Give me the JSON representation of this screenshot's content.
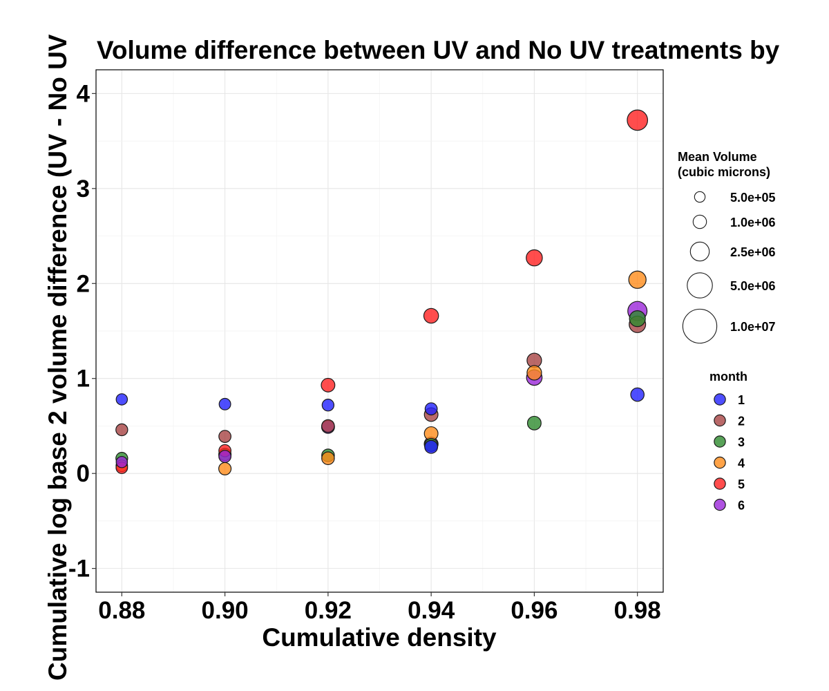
{
  "chart_data": {
    "type": "scatter",
    "title": "Volume difference between UV and No UV treatments by",
    "xlabel": "Cumulative density",
    "ylabel": "Cumulative log base 2 volume difference (UV - No UV",
    "xlim": [
      0.875,
      0.985
    ],
    "ylim": [
      -1.25,
      4.25
    ],
    "x_ticks": [
      "0.88",
      "0.90",
      "0.92",
      "0.94",
      "0.96",
      "0.98"
    ],
    "y_ticks": [
      "-1",
      "0",
      "1",
      "2",
      "3",
      "4"
    ],
    "grid": true,
    "size_legend": {
      "title_lines": [
        "Mean Volume",
        "(cubic microns)"
      ],
      "entries": [
        {
          "label": "5.0e+05",
          "value": 500000
        },
        {
          "label": "1.0e+06",
          "value": 1000000
        },
        {
          "label": "2.5e+06",
          "value": 2500000
        },
        {
          "label": "5.0e+06",
          "value": 5000000
        },
        {
          "label": "1.0e+07",
          "value": 10000000
        }
      ]
    },
    "color_legend": {
      "title": "month",
      "entries": [
        {
          "label": "1",
          "color": "#2222ff"
        },
        {
          "label": "2",
          "color": "#a84444"
        },
        {
          "label": "3",
          "color": "#2e8b2e"
        },
        {
          "label": "4",
          "color": "#ff8c1a"
        },
        {
          "label": "5",
          "color": "#ff2020"
        },
        {
          "label": "6",
          "color": "#9b27d9"
        }
      ]
    },
    "series": [
      {
        "name": "1",
        "color": "#2222ff",
        "points": [
          {
            "x": 0.88,
            "y": 0.78,
            "size": 600000
          },
          {
            "x": 0.9,
            "y": 0.73,
            "size": 650000
          },
          {
            "x": 0.92,
            "y": 0.72,
            "size": 700000
          },
          {
            "x": 0.94,
            "y": 0.68,
            "size": 750000
          },
          {
            "x": 0.94,
            "y": 0.28,
            "size": 900000
          },
          {
            "x": 0.98,
            "y": 0.83,
            "size": 1000000
          }
        ]
      },
      {
        "name": "2",
        "color": "#a84444",
        "points": [
          {
            "x": 0.88,
            "y": 0.46,
            "size": 700000
          },
          {
            "x": 0.9,
            "y": 0.39,
            "size": 750000
          },
          {
            "x": 0.92,
            "y": 0.5,
            "size": 850000
          },
          {
            "x": 0.94,
            "y": 0.62,
            "size": 1050000
          },
          {
            "x": 0.96,
            "y": 1.19,
            "size": 1250000
          },
          {
            "x": 0.98,
            "y": 1.57,
            "size": 1750000
          }
        ]
      },
      {
        "name": "3",
        "color": "#2e8b2e",
        "points": [
          {
            "x": 0.88,
            "y": 0.16,
            "size": 700000
          },
          {
            "x": 0.9,
            "y": 0.2,
            "size": 800000
          },
          {
            "x": 0.92,
            "y": 0.19,
            "size": 850000
          },
          {
            "x": 0.94,
            "y": 0.3,
            "size": 950000
          },
          {
            "x": 0.96,
            "y": 0.53,
            "size": 1050000
          },
          {
            "x": 0.98,
            "y": 1.63,
            "size": 1600000
          }
        ]
      },
      {
        "name": "4",
        "color": "#ff8c1a",
        "points": [
          {
            "x": 0.88,
            "y": 0.08,
            "size": 650000
          },
          {
            "x": 0.9,
            "y": 0.05,
            "size": 800000
          },
          {
            "x": 0.92,
            "y": 0.16,
            "size": 850000
          },
          {
            "x": 0.94,
            "y": 0.42,
            "size": 1050000
          },
          {
            "x": 0.96,
            "y": 1.06,
            "size": 1250000
          },
          {
            "x": 0.98,
            "y": 2.04,
            "size": 2000000
          }
        ]
      },
      {
        "name": "5",
        "color": "#ff2020",
        "points": [
          {
            "x": 0.88,
            "y": 0.06,
            "size": 650000
          },
          {
            "x": 0.9,
            "y": 0.24,
            "size": 750000
          },
          {
            "x": 0.92,
            "y": 0.93,
            "size": 1050000
          },
          {
            "x": 0.94,
            "y": 1.66,
            "size": 1300000
          },
          {
            "x": 0.96,
            "y": 2.27,
            "size": 1650000
          },
          {
            "x": 0.98,
            "y": 3.72,
            "size": 3000000
          }
        ]
      },
      {
        "name": "6",
        "color": "#9b27d9",
        "points": [
          {
            "x": 0.88,
            "y": 0.12,
            "size": 600000
          },
          {
            "x": 0.9,
            "y": 0.18,
            "size": 750000
          },
          {
            "x": 0.92,
            "y": 0.49,
            "size": 900000
          },
          {
            "x": 0.94,
            "y": 0.31,
            "size": 1100000
          },
          {
            "x": 0.96,
            "y": 1.01,
            "size": 1500000
          },
          {
            "x": 0.98,
            "y": 1.71,
            "size": 2600000
          }
        ]
      }
    ]
  }
}
